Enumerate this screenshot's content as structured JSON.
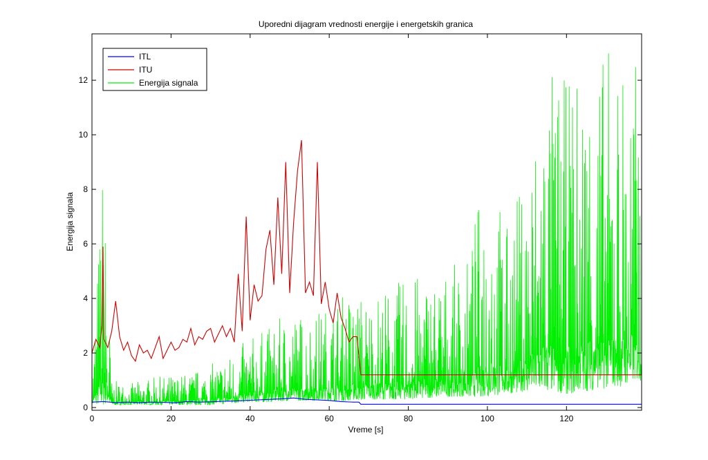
{
  "chart_data": {
    "type": "line",
    "title": "Uporedni dijagram vrednosti energije i energetskih granica",
    "xlabel": "Vreme [s]",
    "ylabel": "Energija signala",
    "xlim": [
      0,
      139
    ],
    "ylim": [
      -0.1,
      13.7
    ],
    "x_ticks": [
      0,
      20,
      40,
      60,
      80,
      100,
      120
    ],
    "y_ticks": [
      0,
      2,
      4,
      6,
      8,
      10,
      12
    ],
    "grid": false,
    "legend_position": "top-left",
    "series": [
      {
        "name": "ITL",
        "color": "#0000ff",
        "x": [
          0,
          3,
          6,
          9,
          12,
          15,
          18,
          21,
          24,
          27,
          30,
          33,
          36,
          39,
          42,
          45,
          48,
          51,
          54,
          57,
          60,
          63,
          66,
          67.5,
          68,
          139
        ],
        "y": [
          0.2,
          0.22,
          0.18,
          0.2,
          0.18,
          0.2,
          0.19,
          0.17,
          0.22,
          0.2,
          0.21,
          0.23,
          0.24,
          0.26,
          0.28,
          0.3,
          0.32,
          0.35,
          0.3,
          0.28,
          0.26,
          0.22,
          0.2,
          0.2,
          0.12,
          0.12
        ]
      },
      {
        "name": "ITU",
        "color": "#cc0000",
        "x": [
          0,
          1,
          2,
          2.5,
          2.8,
          3,
          4,
          5,
          6,
          7,
          8,
          9,
          10,
          11,
          12,
          13,
          14,
          15,
          16,
          17,
          18,
          19,
          20,
          21,
          22,
          23,
          24,
          25,
          26,
          27,
          28,
          29,
          30,
          31,
          32,
          33,
          34,
          35,
          36,
          37,
          38,
          39,
          40,
          41,
          42,
          43,
          44,
          45,
          46,
          47,
          48,
          49,
          50,
          51,
          52,
          53,
          54,
          55,
          56,
          57,
          58,
          59,
          60,
          61,
          62,
          63,
          64,
          65,
          66,
          67,
          68,
          68.5,
          139
        ],
        "y": [
          2.0,
          2.5,
          2.2,
          3.0,
          5.9,
          2.5,
          2.2,
          2.8,
          3.9,
          2.6,
          2.1,
          2.4,
          1.9,
          1.7,
          2.3,
          2.0,
          2.1,
          1.8,
          2.2,
          2.6,
          1.8,
          2.1,
          2.4,
          2.1,
          2.2,
          2.5,
          2.4,
          2.9,
          2.3,
          2.6,
          2.5,
          2.8,
          2.9,
          2.4,
          2.7,
          3.0,
          2.6,
          2.9,
          2.4,
          4.9,
          2.8,
          7.0,
          3.2,
          4.5,
          3.9,
          4.1,
          5.8,
          6.5,
          4.5,
          7.7,
          4.9,
          9.0,
          4.2,
          6.8,
          8.7,
          9.8,
          4.2,
          4.6,
          4.1,
          9.0,
          3.8,
          4.6,
          3.6,
          3.1,
          4.2,
          3.3,
          2.9,
          2.4,
          2.6,
          2.6,
          1.2,
          1.2,
          1.2
        ]
      },
      {
        "name": "Energija signala",
        "color": "#00ee00",
        "x": [
          0,
          2.8,
          5,
          10,
          15,
          20,
          25,
          30,
          35,
          40,
          45,
          50,
          55,
          60,
          65,
          70,
          75,
          80,
          85,
          90,
          95,
          100,
          105,
          110,
          115,
          120,
          125,
          130,
          135,
          139
        ],
        "y": [
          1.2,
          9.6,
          1.0,
          0.9,
          1.1,
          1.2,
          1.3,
          1.6,
          2.0,
          2.6,
          3.0,
          3.6,
          3.5,
          3.8,
          4.4,
          4.2,
          4.5,
          4.8,
          5.0,
          5.1,
          5.5,
          9.5,
          6.8,
          9.0,
          12.9,
          12.0,
          13.1,
          13.3,
          13.4,
          12.5
        ],
        "y_min": [
          0.1,
          0.1,
          0.1,
          0.1,
          0.1,
          0.1,
          0.1,
          0.1,
          0.15,
          0.2,
          0.2,
          0.25,
          0.25,
          0.25,
          0.25,
          0.3,
          0.3,
          0.3,
          0.35,
          0.4,
          0.4,
          0.4,
          0.5,
          0.6,
          0.6,
          0.5,
          0.6,
          0.7,
          0.8,
          1.0
        ],
        "rendering": "dense oscillating envelope"
      }
    ]
  }
}
